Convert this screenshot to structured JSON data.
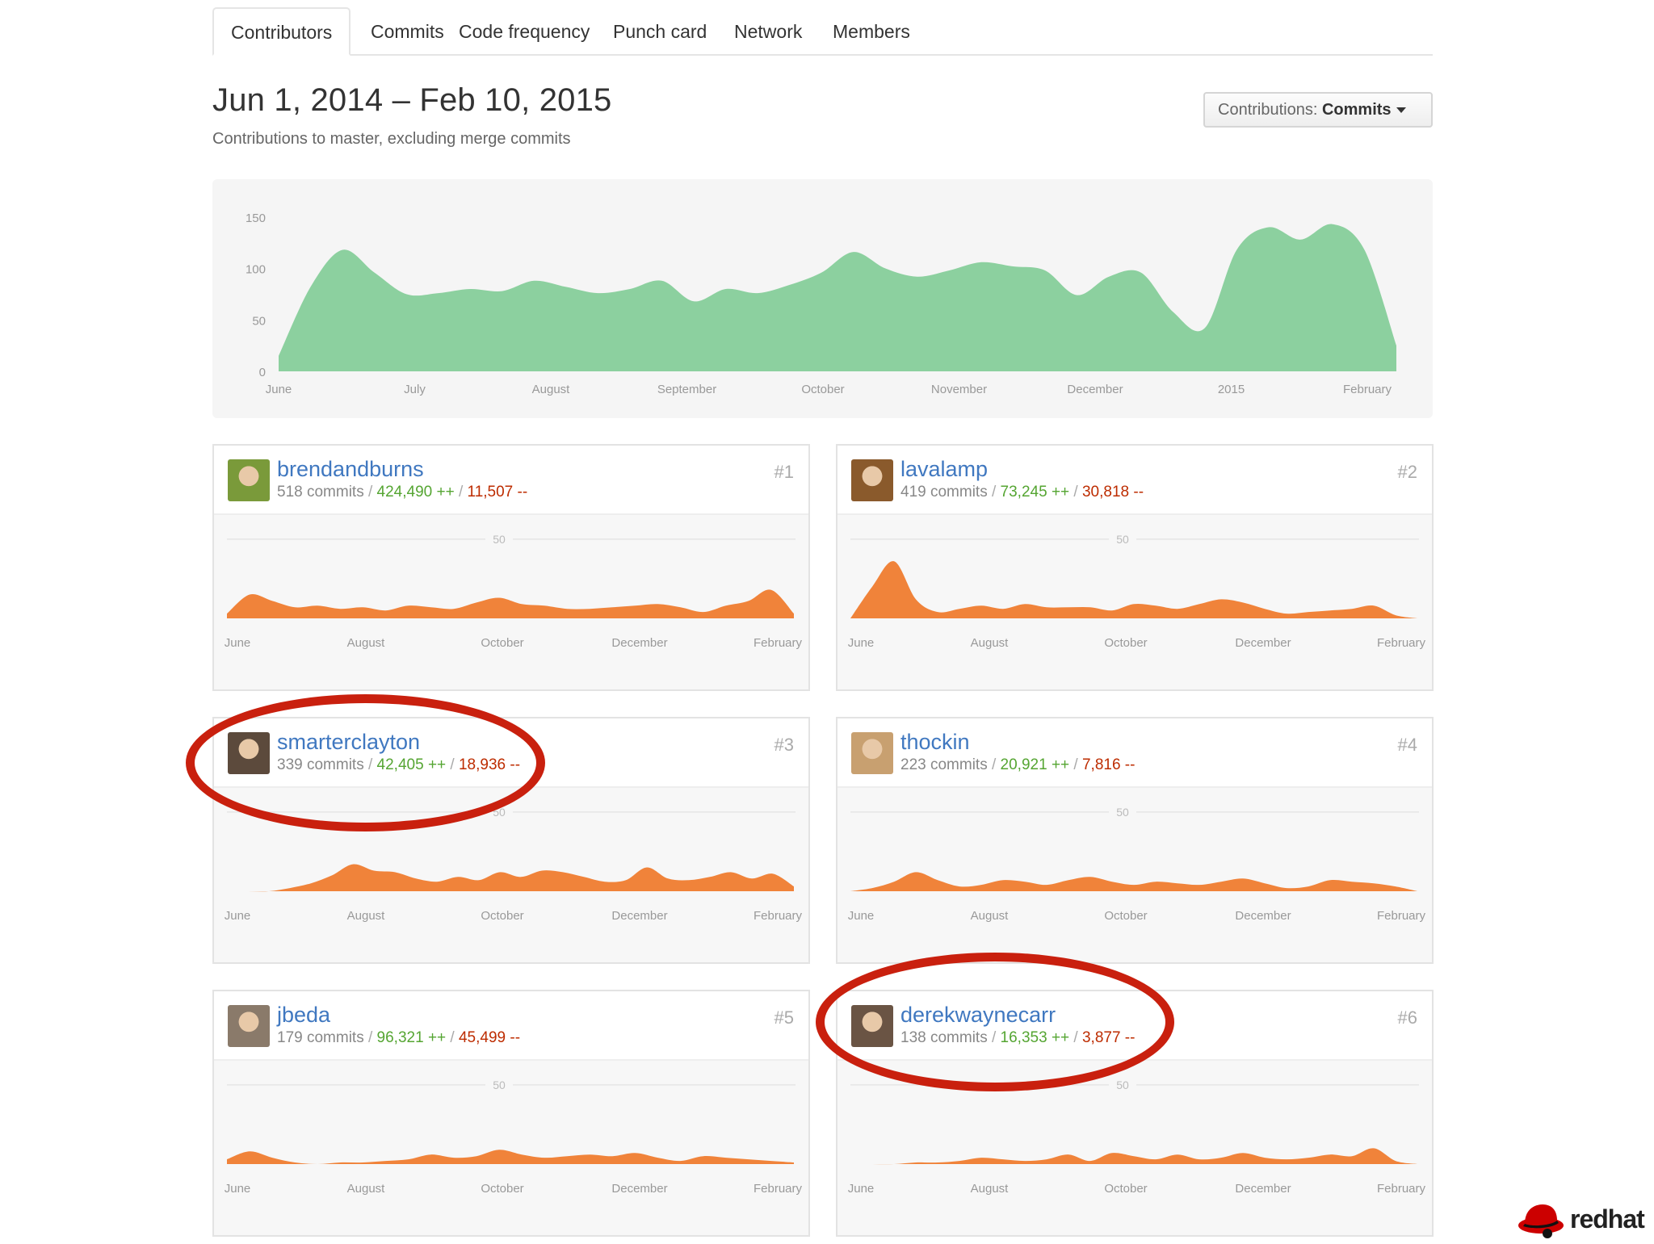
{
  "tabs": [
    {
      "label": "Contributors",
      "active": true
    },
    {
      "label": "Commits",
      "active": false
    },
    {
      "label": "Code frequency",
      "active": false
    },
    {
      "label": "Punch card",
      "active": false
    },
    {
      "label": "Network",
      "active": false
    },
    {
      "label": "Members",
      "active": false
    }
  ],
  "header": {
    "range": "Jun 1, 2014 – Feb 10, 2015",
    "subtitle": "Contributions to master, excluding merge commits",
    "select_label": "Contributions: ",
    "select_value": "Commits"
  },
  "chart_data": {
    "type": "area",
    "y_ticks": [
      "150",
      "100",
      "50",
      "0"
    ],
    "ylim": [
      0,
      160
    ],
    "x_labels": [
      "June",
      "July",
      "August",
      "September",
      "October",
      "November",
      "December",
      "2015",
      "February"
    ],
    "color": "#8cd09f",
    "values": [
      15,
      82,
      118,
      96,
      75,
      76,
      80,
      78,
      88,
      82,
      76,
      80,
      88,
      68,
      80,
      76,
      84,
      96,
      116,
      100,
      92,
      98,
      106,
      102,
      98,
      74,
      92,
      96,
      58,
      42,
      118,
      140,
      128,
      143,
      118,
      25
    ]
  },
  "contributors": [
    {
      "rank": "#1",
      "username": "brendandburns",
      "commits": "518 commits",
      "additions": "424,490 ++",
      "deletions": "11,507 --",
      "avatar": "avatar-photo",
      "avatar_color": "#7a9a3a",
      "y_label": "50",
      "x_labels": [
        "June",
        "August",
        "October",
        "December",
        "February"
      ],
      "color": "#f0833a",
      "values": [
        3,
        15,
        11,
        7,
        8,
        6,
        7,
        5,
        8,
        7,
        6,
        10,
        13,
        9,
        8,
        6,
        6,
        7,
        8,
        9,
        7,
        4,
        8,
        11,
        18,
        3
      ]
    },
    {
      "rank": "#2",
      "username": "lavalamp",
      "commits": "419 commits",
      "additions": "73,245 ++",
      "deletions": "30,818 --",
      "avatar": "avatar-photo",
      "avatar_color": "#8a5a2c",
      "y_label": "50",
      "x_labels": [
        "June",
        "August",
        "October",
        "December",
        "February"
      ],
      "color": "#f0833a",
      "values": [
        0,
        20,
        36,
        12,
        4,
        6,
        8,
        6,
        9,
        7,
        7,
        7,
        5,
        9,
        8,
        6,
        9,
        12,
        10,
        6,
        3,
        4,
        5,
        6,
        8,
        2,
        0
      ]
    },
    {
      "rank": "#3",
      "username": "smarterclayton",
      "commits": "339 commits",
      "additions": "42,405 ++",
      "deletions": "18,936 --",
      "avatar": "avatar-photo",
      "avatar_color": "#5c4a3c",
      "y_label": "50",
      "x_labels": [
        "June",
        "August",
        "October",
        "December",
        "February"
      ],
      "color": "#f0833a",
      "values": [
        0,
        0,
        0,
        2,
        5,
        10,
        17,
        13,
        12,
        8,
        6,
        9,
        7,
        12,
        9,
        13,
        12,
        9,
        6,
        7,
        15,
        8,
        7,
        9,
        12,
        8,
        11,
        3
      ]
    },
    {
      "rank": "#4",
      "username": "thockin",
      "commits": "223 commits",
      "additions": "20,921 ++",
      "deletions": "7,816 --",
      "avatar": "avatar-cartoon",
      "avatar_color": "#c8a070",
      "y_label": "50",
      "x_labels": [
        "June",
        "August",
        "October",
        "December",
        "February"
      ],
      "color": "#f0833a",
      "values": [
        0,
        2,
        6,
        12,
        7,
        3,
        4,
        7,
        6,
        4,
        7,
        9,
        6,
        4,
        6,
        5,
        4,
        6,
        8,
        5,
        2,
        3,
        7,
        6,
        5,
        3,
        0
      ]
    },
    {
      "rank": "#5",
      "username": "jbeda",
      "commits": "179 commits",
      "additions": "96,321 ++",
      "deletions": "45,499 --",
      "avatar": "avatar-photo",
      "avatar_color": "#8a7a6a",
      "y_label": "50",
      "x_labels": [
        "June",
        "August",
        "October",
        "December",
        "February"
      ],
      "color": "#f0833a",
      "values": [
        3,
        8,
        4,
        1,
        0,
        1,
        1,
        2,
        3,
        6,
        4,
        5,
        9,
        6,
        4,
        5,
        6,
        5,
        7,
        4,
        2,
        5,
        4,
        3,
        2,
        1
      ]
    },
    {
      "rank": "#6",
      "username": "derekwaynecarr",
      "commits": "138 commits",
      "additions": "16,353 ++",
      "deletions": "3,877 --",
      "avatar": "avatar-photo",
      "avatar_color": "#6a5444",
      "y_label": "50",
      "x_labels": [
        "June",
        "August",
        "October",
        "December",
        "February"
      ],
      "color": "#f0833a",
      "values": [
        0,
        0,
        0,
        1,
        1,
        2,
        4,
        3,
        2,
        3,
        6,
        2,
        7,
        5,
        3,
        6,
        3,
        4,
        7,
        4,
        3,
        4,
        6,
        5,
        10,
        2,
        0
      ]
    }
  ],
  "logo": {
    "text": "redhat",
    "icon": "redhat-shadowman-icon"
  }
}
